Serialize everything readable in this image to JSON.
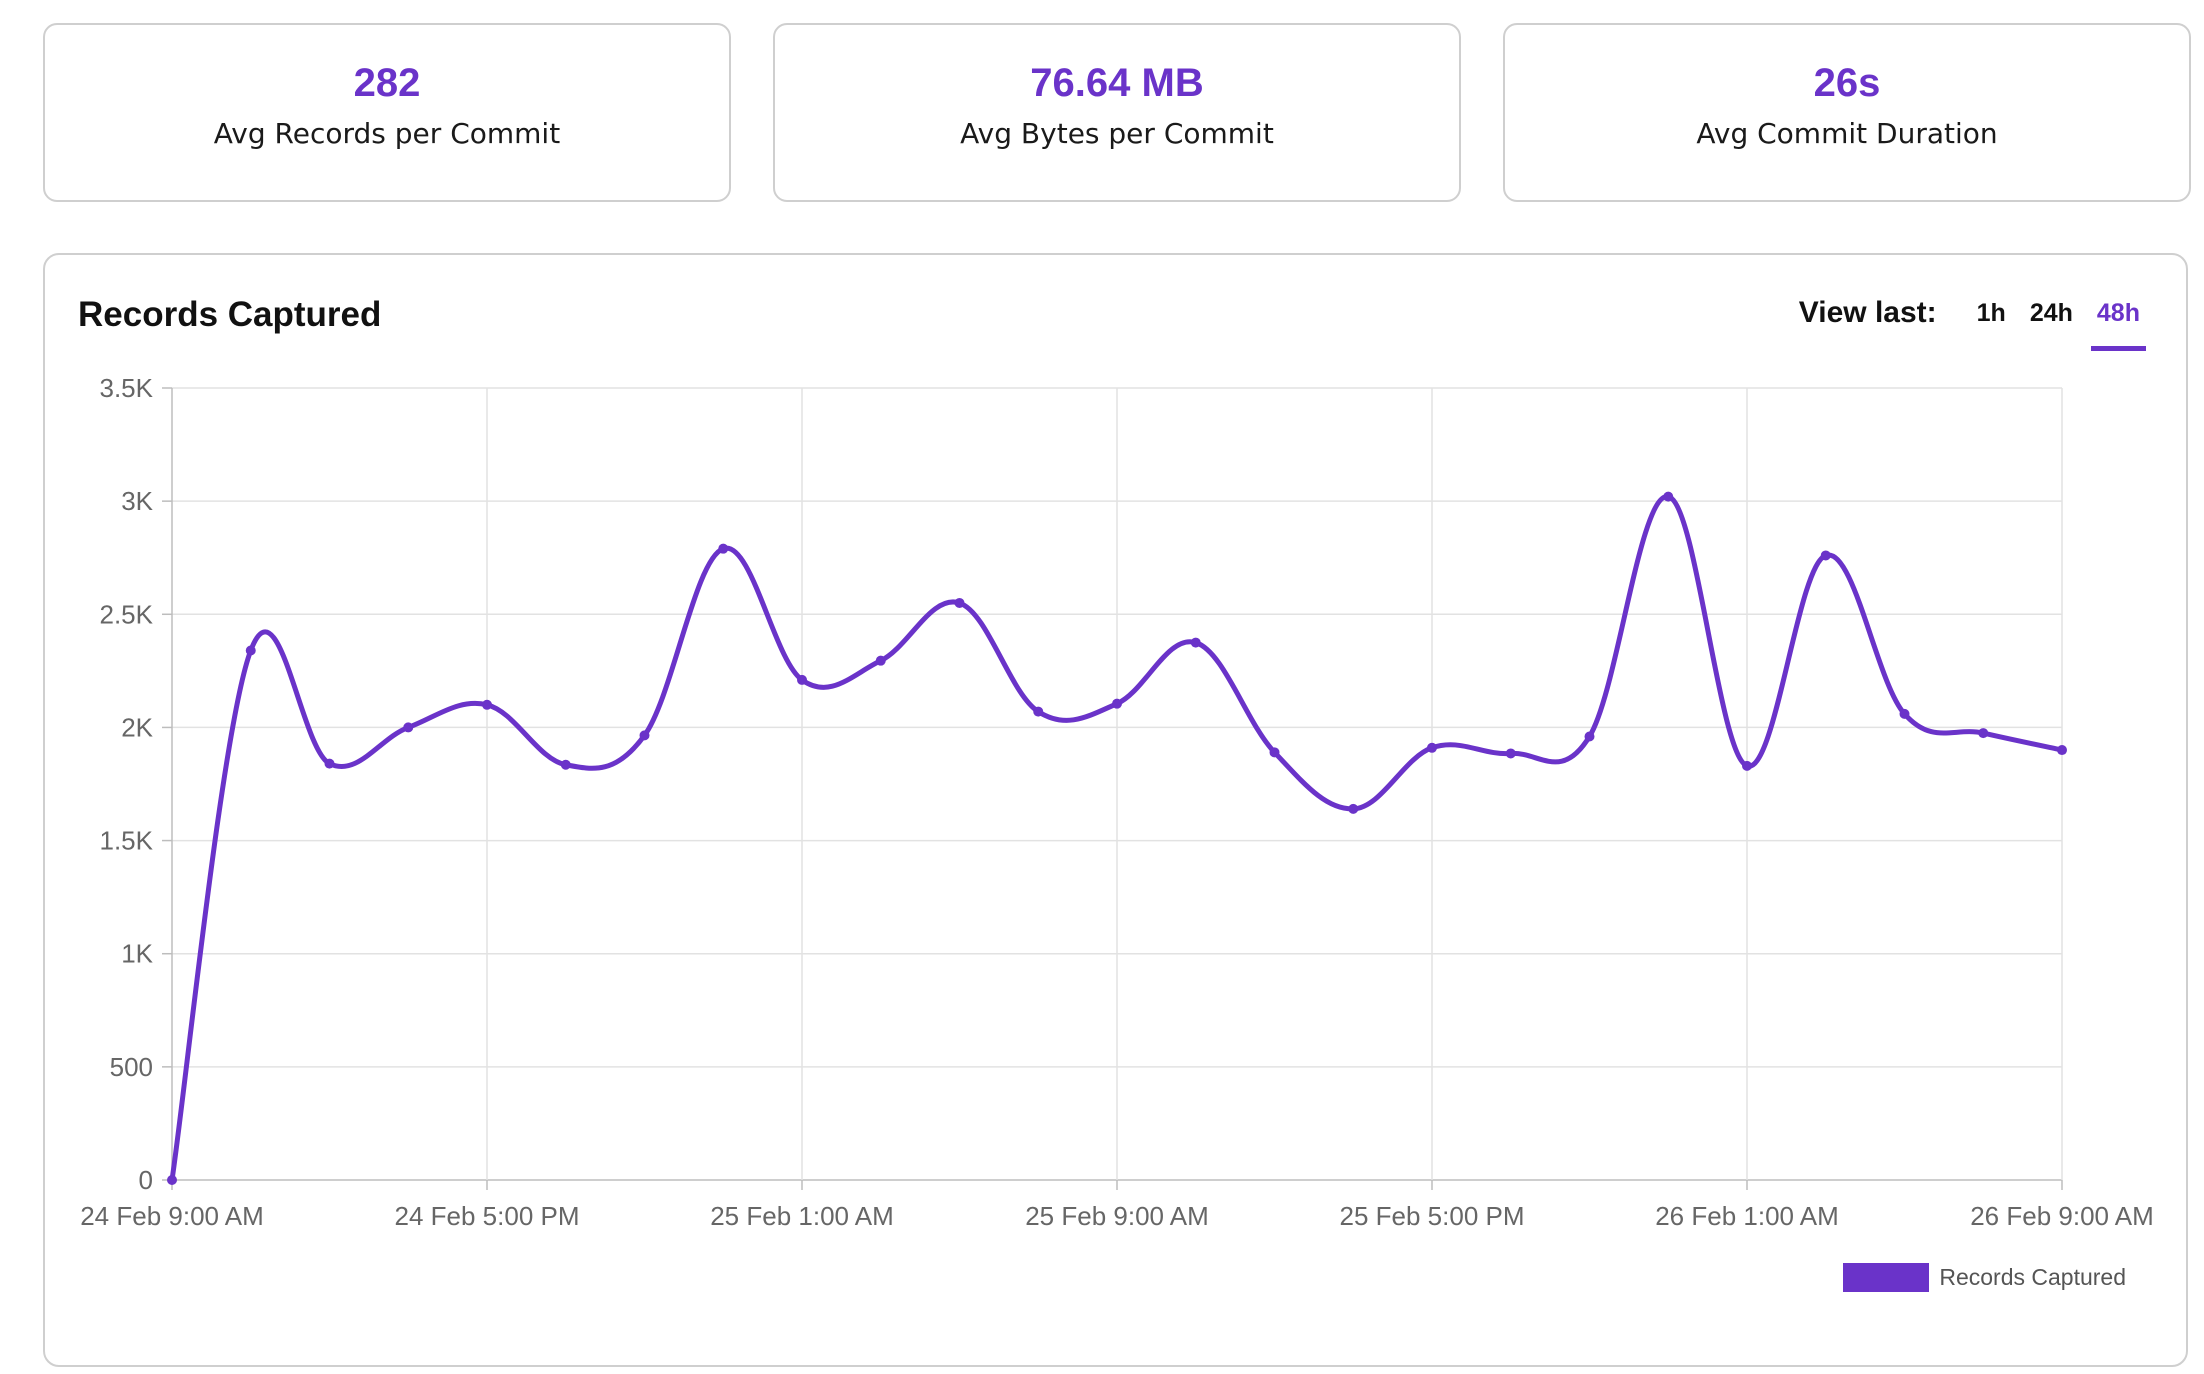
{
  "stats": [
    {
      "value": "282",
      "label": "Avg Records per Commit"
    },
    {
      "value": "76.64 MB",
      "label": "Avg Bytes per Commit"
    },
    {
      "value": "26s",
      "label": "Avg Commit Duration"
    }
  ],
  "chart_card": {
    "title": "Records Captured",
    "view_last_label": "View last:",
    "ranges": [
      "1h",
      "24h",
      "48h"
    ],
    "active_range": "48h"
  },
  "colors": {
    "accent": "#6a33c9",
    "grid": "#e2e2e2",
    "axis_text": "#666666"
  },
  "chart_data": {
    "type": "line",
    "title": "Records Captured",
    "xlabel": "",
    "ylabel": "",
    "ylim": [
      0,
      3500
    ],
    "yticks": [
      0,
      500,
      1000,
      1500,
      2000,
      2500,
      3000,
      3500
    ],
    "ytick_labels": [
      "0",
      "500",
      "1K",
      "1.5K",
      "2K",
      "2.5K",
      "3K",
      "3.5K"
    ],
    "xlim": [
      "2025-02-24T09:00",
      "2025-02-26T09:00"
    ],
    "xticks": [
      "2025-02-24T09:00",
      "2025-02-24T17:00",
      "2025-02-25T01:00",
      "2025-02-25T09:00",
      "2025-02-25T17:00",
      "2025-02-26T01:00",
      "2025-02-26T09:00"
    ],
    "xtick_labels": [
      "24 Feb 9:00 AM",
      "24 Feb 5:00 PM",
      "25 Feb 1:00 AM",
      "25 Feb 9:00 AM",
      "25 Feb 5:00 PM",
      "26 Feb 1:00 AM",
      "26 Feb 9:00 AM"
    ],
    "grid": true,
    "legend_position": "bottom-right",
    "series": [
      {
        "name": "Records Captured",
        "color": "#6a33c9",
        "x": [
          "2025-02-24T09:00",
          "2025-02-24T11:00",
          "2025-02-24T13:00",
          "2025-02-24T15:00",
          "2025-02-24T17:00",
          "2025-02-24T19:00",
          "2025-02-24T21:00",
          "2025-02-24T23:00",
          "2025-02-25T01:00",
          "2025-02-25T03:00",
          "2025-02-25T05:00",
          "2025-02-25T07:00",
          "2025-02-25T09:00",
          "2025-02-25T11:00",
          "2025-02-25T13:00",
          "2025-02-25T15:00",
          "2025-02-25T17:00",
          "2025-02-25T19:00",
          "2025-02-25T21:00",
          "2025-02-25T23:00",
          "2025-02-26T01:00",
          "2025-02-26T03:00",
          "2025-02-26T05:00",
          "2025-02-26T07:00",
          "2025-02-26T09:00"
        ],
        "values": [
          0,
          2340,
          1840,
          2000,
          2100,
          1835,
          1965,
          2790,
          2210,
          2295,
          2550,
          2070,
          2105,
          2375,
          1890,
          1640,
          1910,
          1885,
          1960,
          3020,
          1830,
          2760,
          2060,
          1975,
          1900
        ]
      }
    ]
  }
}
